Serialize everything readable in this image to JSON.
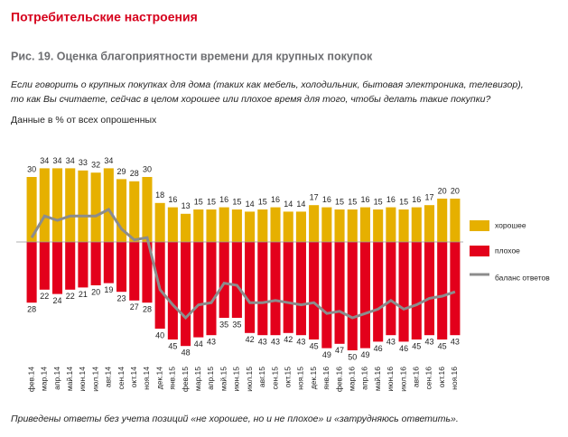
{
  "chart_data": {
    "type": "diverging_bar",
    "title": "Потребительские настроения",
    "subtitle": "Рис. 19. Оценка благоприятности времени для крупных покупок",
    "question": [
      "Если говорить о крупных покупках для дома (таких как мебель, холодильник, бытовая электроника, телевизор),",
      "то как Вы считаете, сейчас в целом хорошее или плохое время для того, чтобы делать такие покупки?"
    ],
    "units_note": "Данные в % от всех опрошенных",
    "footnote": "Приведены ответы без учета позиций «не хорошее, но и не плохое» и «затрудняюсь ответить».",
    "categories": [
      "фев.14",
      "мар.14",
      "апр.14",
      "май.14",
      "июн.14",
      "июл.14",
      "авг.14",
      "сен.14",
      "окт.14",
      "ноя.14",
      "дек.14",
      "янв.15",
      "фев.15",
      "мар.15",
      "апр.15",
      "май.15",
      "июн.15",
      "июл.15",
      "авг.15",
      "сен.15",
      "окт.15",
      "ноя.15",
      "дек.15",
      "янв.16",
      "фев.16",
      "мар.16",
      "апр.16",
      "май.16",
      "июн.16",
      "июл.16",
      "авг.16",
      "сен.16",
      "окт.16",
      "ноя.16"
    ],
    "series": [
      {
        "name": "хорошее",
        "color": "#e6b000",
        "values": [
          30,
          34,
          34,
          34,
          33,
          32,
          34,
          29,
          28,
          30,
          18,
          16,
          13,
          15,
          15,
          16,
          15,
          14,
          15,
          16,
          14,
          14,
          17,
          16,
          15,
          15,
          16,
          15,
          16,
          15,
          16,
          17,
          20,
          20
        ]
      },
      {
        "name": "плохое",
        "color": "#e3001b",
        "values": [
          -28,
          -22,
          -24,
          -22,
          -21,
          -20,
          -19,
          -23,
          -27,
          -28,
          -40,
          -45,
          -48,
          -44,
          -43,
          -35,
          -35,
          -42,
          -43,
          -43,
          -42,
          -43,
          -45,
          -49,
          -47,
          -50,
          -49,
          -46,
          -43,
          -46,
          -45,
          -43,
          -45,
          -43
        ],
        "value_labels": [
          "28",
          "22",
          "24",
          "22",
          "21",
          "20",
          "19",
          "23",
          "27",
          "28",
          "40",
          "45",
          "48",
          "44",
          "43",
          "35",
          "35",
          "42",
          "43",
          "43",
          "42",
          "43",
          "45",
          "49",
          "47",
          "50",
          "49",
          "46",
          "43",
          "46",
          "45",
          "43",
          "45",
          "43"
        ]
      },
      {
        "name": "баланс ответов",
        "color": "#8c8c8c",
        "kind": "line",
        "values": [
          2,
          12,
          10,
          12,
          12,
          12,
          15,
          6,
          1,
          2,
          -22,
          -29,
          -35,
          -29,
          -28,
          -19,
          -20,
          -28,
          -28,
          -27,
          -28,
          -29,
          -28,
          -33,
          -32,
          -35,
          -33,
          -31,
          -27,
          -31,
          -29,
          -26,
          -25,
          -23
        ]
      }
    ],
    "ylim": [
      -55,
      40
    ]
  }
}
